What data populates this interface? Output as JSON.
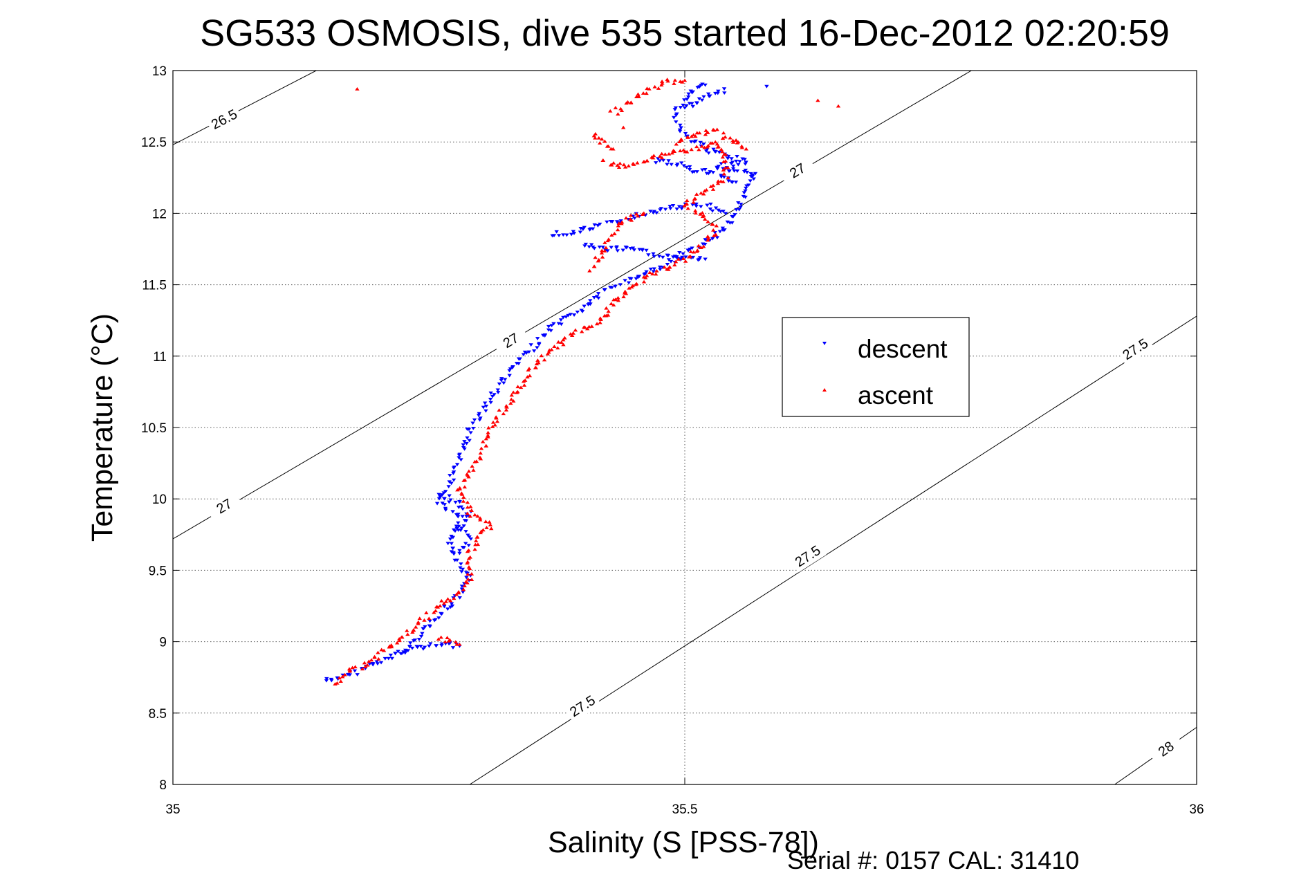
{
  "chart_data": {
    "type": "scatter",
    "title": "SG533 OSMOSIS, dive 535 started 16-Dec-2012 02:20:59",
    "xlabel": "Salinity (S [PSS-78])",
    "ylabel": "Temperature (°C)",
    "xlim": [
      35,
      36
    ],
    "ylim": [
      8,
      13
    ],
    "x_ticks": [
      35,
      35.5,
      36
    ],
    "x_tick_labels": [
      "35",
      "35.5",
      "36"
    ],
    "y_ticks": [
      8,
      8.5,
      9,
      9.5,
      10,
      10.5,
      11,
      11.5,
      12,
      12.5,
      13
    ],
    "y_tick_labels": [
      "8",
      "8.5",
      "9",
      "9.5",
      "10",
      "10.5",
      "11",
      "11.5",
      "12",
      "12.5",
      "13"
    ],
    "grid": true,
    "legend_position": "center-right",
    "footer": "Serial #: 0157  CAL: 31410",
    "isopycnals": [
      {
        "label": "26.5",
        "points": [
          [
            35.0,
            12.48
          ],
          [
            35.14,
            13.0
          ]
        ],
        "label_at": [
          35.05,
          12.66
        ]
      },
      {
        "label": "27",
        "points": [
          [
            35.0,
            9.72
          ],
          [
            35.78,
            13.0
          ]
        ],
        "label_at": [
          [
            35.05,
            9.95
          ],
          [
            35.33,
            11.11
          ],
          [
            35.61,
            12.3
          ]
        ]
      },
      {
        "label": "27.5",
        "points": [
          [
            35.29,
            8.0
          ],
          [
            36.0,
            11.28
          ]
        ],
        "label_at": [
          [
            35.4,
            8.55
          ],
          [
            35.62,
            9.6
          ],
          [
            35.94,
            11.05
          ]
        ]
      },
      {
        "label": "28",
        "points": [
          [
            35.92,
            8.0
          ],
          [
            36.0,
            8.4
          ]
        ],
        "label_at": [
          35.97,
          8.25
        ]
      }
    ],
    "series": [
      {
        "name": "descent",
        "color": "#0000ff",
        "marker": "triangle-down",
        "tracks": [
          [
            [
              35.15,
              8.73
            ],
            [
              35.17,
              8.76
            ],
            [
              35.19,
              8.83
            ],
            [
              35.21,
              8.88
            ],
            [
              35.23,
              8.95
            ],
            [
              35.24,
              9.05
            ],
            [
              35.26,
              9.18
            ],
            [
              35.28,
              9.32
            ],
            [
              35.29,
              9.45
            ],
            [
              35.28,
              9.55
            ],
            [
              35.27,
              9.72
            ],
            [
              35.28,
              9.88
            ],
            [
              35.26,
              9.97
            ],
            [
              35.27,
              10.1
            ],
            [
              35.28,
              10.28
            ],
            [
              35.29,
              10.48
            ],
            [
              35.31,
              10.7
            ],
            [
              35.33,
              10.9
            ],
            [
              35.35,
              11.05
            ],
            [
              35.37,
              11.2
            ],
            [
              35.4,
              11.33
            ],
            [
              35.42,
              11.45
            ],
            [
              35.45,
              11.55
            ],
            [
              35.48,
              11.63
            ],
            [
              35.5,
              11.72
            ],
            [
              35.52,
              11.8
            ],
            [
              35.54,
              11.9
            ],
            [
              35.55,
              12.02
            ],
            [
              35.56,
              12.15
            ],
            [
              35.57,
              12.28
            ],
            [
              35.55,
              12.3
            ],
            [
              35.53,
              12.33
            ],
            [
              35.56,
              12.36
            ],
            [
              35.52,
              12.45
            ],
            [
              35.5,
              12.55
            ],
            [
              35.49,
              12.7
            ],
            [
              35.5,
              12.8
            ],
            [
              35.51,
              12.88
            ],
            [
              35.52,
              12.9
            ]
          ],
          [
            [
              35.22,
              8.93
            ],
            [
              35.25,
              8.97
            ],
            [
              35.27,
              8.98
            ],
            [
              35.28,
              8.97
            ]
          ],
          [
            [
              35.26,
              10.04
            ],
            [
              35.27,
              10.0
            ],
            [
              35.28,
              9.97
            ],
            [
              35.29,
              9.88
            ],
            [
              35.28,
              9.8
            ],
            [
              35.29,
              9.72
            ],
            [
              35.28,
              9.62
            ]
          ],
          [
            [
              35.37,
              11.85
            ],
            [
              35.39,
              11.87
            ],
            [
              35.42,
              11.92
            ],
            [
              35.45,
              11.97
            ],
            [
              35.47,
              12.02
            ],
            [
              35.5,
              12.05
            ],
            [
              35.52,
              12.06
            ],
            [
              35.54,
              12.0
            ]
          ],
          [
            [
              35.4,
              11.78
            ],
            [
              35.42,
              11.75
            ],
            [
              35.45,
              11.75
            ],
            [
              35.48,
              11.7
            ],
            [
              35.5,
              11.68
            ],
            [
              35.52,
              11.68
            ]
          ],
          [
            [
              35.47,
              12.37
            ],
            [
              35.49,
              12.35
            ],
            [
              35.51,
              12.3
            ],
            [
              35.53,
              12.28
            ],
            [
              35.55,
              12.22
            ]
          ],
          [
            [
              35.54,
              12.86
            ],
            [
              35.52,
              12.82
            ],
            [
              35.51,
              12.76
            ],
            [
              35.5,
              12.74
            ]
          ]
        ],
        "points": [
          [
            35.58,
            12.89
          ]
        ]
      },
      {
        "name": "ascent",
        "color": "#ff0000",
        "marker": "triangle-up",
        "tracks": [
          [
            [
              35.16,
              8.7
            ],
            [
              35.17,
              8.78
            ],
            [
              35.19,
              8.85
            ],
            [
              35.2,
              8.9
            ],
            [
              35.22,
              9.0
            ],
            [
              35.24,
              9.12
            ],
            [
              35.26,
              9.25
            ],
            [
              35.28,
              9.33
            ],
            [
              35.29,
              9.45
            ],
            [
              35.29,
              9.62
            ],
            [
              35.3,
              9.75
            ],
            [
              35.31,
              9.82
            ],
            [
              35.29,
              9.9
            ],
            [
              35.28,
              10.05
            ],
            [
              35.29,
              10.18
            ],
            [
              35.3,
              10.3
            ],
            [
              35.31,
              10.48
            ],
            [
              35.33,
              10.7
            ],
            [
              35.35,
              10.9
            ],
            [
              35.37,
              11.05
            ],
            [
              35.39,
              11.15
            ],
            [
              35.42,
              11.25
            ],
            [
              35.43,
              11.38
            ],
            [
              35.45,
              11.5
            ],
            [
              35.47,
              11.58
            ],
            [
              35.5,
              11.68
            ],
            [
              35.52,
              11.78
            ],
            [
              35.53,
              11.88
            ],
            [
              35.52,
              11.98
            ],
            [
              35.5,
              12.05
            ],
            [
              35.52,
              12.15
            ],
            [
              35.54,
              12.25
            ],
            [
              35.54,
              12.42
            ],
            [
              35.53,
              12.5
            ],
            [
              35.51,
              12.45
            ],
            [
              35.49,
              12.43
            ],
            [
              35.47,
              12.38
            ],
            [
              35.45,
              12.34
            ],
            [
              35.43,
              12.33
            ],
            [
              35.42,
              12.37
            ]
          ],
          [
            [
              35.26,
              9.02
            ],
            [
              35.27,
              9.0
            ],
            [
              35.28,
              8.98
            ]
          ],
          [
            [
              35.41,
              11.6
            ],
            [
              35.42,
              11.75
            ],
            [
              35.43,
              11.85
            ],
            [
              35.44,
              11.95
            ],
            [
              35.46,
              12.0
            ]
          ],
          [
            [
              35.49,
              12.5
            ],
            [
              35.51,
              12.55
            ],
            [
              35.53,
              12.58
            ],
            [
              35.55,
              12.5
            ],
            [
              35.56,
              12.45
            ]
          ],
          [
            [
              35.43,
              12.7
            ],
            [
              35.45,
              12.8
            ],
            [
              35.47,
              12.88
            ],
            [
              35.48,
              12.92
            ],
            [
              35.5,
              12.93
            ]
          ],
          [
            [
              35.41,
              12.55
            ],
            [
              35.42,
              12.5
            ],
            [
              35.43,
              12.45
            ]
          ]
        ],
        "points": [
          [
            35.18,
            12.87
          ],
          [
            35.63,
            12.79
          ],
          [
            35.65,
            12.75
          ],
          [
            35.44,
            12.6
          ]
        ]
      }
    ]
  }
}
